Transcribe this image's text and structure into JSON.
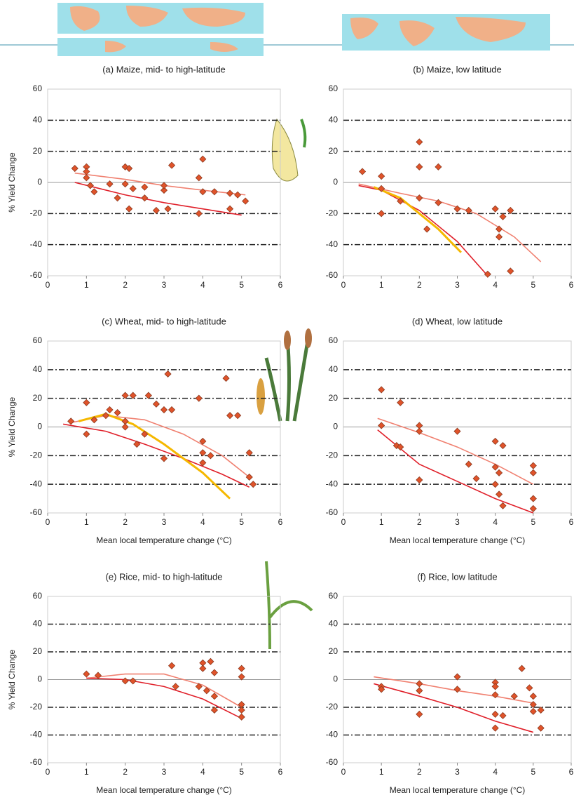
{
  "chart_data": [
    {
      "type": "scatter",
      "title": "(a) Maize, mid- to high-latitude",
      "ylabel": "% Yield Change",
      "xlim": [
        0,
        6
      ],
      "ylim": [
        -60,
        60
      ],
      "xticks": [
        0,
        1,
        2,
        3,
        4,
        5,
        6
      ],
      "yticks": [
        -60,
        -40,
        -20,
        0,
        20,
        40,
        60
      ],
      "grid": true,
      "points": {
        "color": "#e0532a",
        "x": [
          0.7,
          1,
          1,
          1,
          1.1,
          1.2,
          1.6,
          1.8,
          2,
          2,
          2.1,
          2.1,
          2.2,
          2.5,
          2.5,
          2.8,
          3,
          3,
          3.1,
          3.2,
          3.9,
          3.9,
          4,
          4,
          4.3,
          4.7,
          4.7,
          4.9,
          5.1
        ],
        "values": [
          9,
          10,
          7,
          3,
          -2,
          -6,
          -1,
          -10,
          -1,
          10,
          9,
          -17,
          -4,
          -3,
          -10,
          -18,
          -5,
          -2,
          -17,
          11,
          -20,
          3,
          15,
          -6,
          -6,
          -7,
          -17,
          -8,
          -12
        ]
      },
      "curves": [
        {
          "color": "#f08070",
          "x": [
            0.7,
            2,
            3,
            4,
            5.1
          ],
          "values": [
            6,
            2,
            -2,
            -5,
            -8
          ]
        },
        {
          "color": "#e0202a",
          "x": [
            0.7,
            2,
            3,
            4,
            5
          ],
          "values": [
            0,
            -8,
            -13,
            -17,
            -21
          ]
        }
      ]
    },
    {
      "type": "scatter",
      "title": "(b) Maize, low latitude",
      "xlim": [
        0,
        6
      ],
      "ylim": [
        -60,
        60
      ],
      "xticks": [
        0,
        1,
        2,
        3,
        4,
        5,
        6
      ],
      "yticks": [
        -60,
        -40,
        -20,
        0,
        20,
        40,
        60
      ],
      "grid": true,
      "points": {
        "color": "#e0532a",
        "x": [
          0.5,
          1,
          1,
          1,
          1.5,
          2,
          2,
          2,
          2.2,
          2.5,
          2.5,
          3,
          3.3,
          4,
          4.1,
          4.1,
          4.2,
          4.4,
          4.4,
          3.8
        ],
        "values": [
          7,
          -20,
          4,
          -4,
          -12,
          26,
          10,
          -10,
          -30,
          10,
          -13,
          -17,
          -18,
          -17,
          -30,
          -35,
          -22,
          -18,
          -57,
          -59
        ]
      },
      "curves": [
        {
          "color": "#f08070",
          "x": [
            0.4,
            1.5,
            2.5,
            3.5,
            4.5,
            5.2
          ],
          "values": [
            -1,
            -7,
            -12,
            -20,
            -35,
            -51
          ]
        },
        {
          "color": "#e0202a",
          "x": [
            0.4,
            1,
            2,
            3,
            3.8
          ],
          "values": [
            -2,
            -5,
            -18,
            -38,
            -60
          ]
        },
        {
          "color": "#f5b800",
          "x": [
            0.8,
            1.5,
            2.5,
            3.1
          ],
          "values": [
            -3,
            -10,
            -30,
            -45
          ]
        }
      ]
    },
    {
      "type": "scatter",
      "title": "(c) Wheat, mid- to high-latitude",
      "ylabel": "% Yield Change",
      "xlabel": "Mean local temperature change (°C)",
      "xlim": [
        0,
        6
      ],
      "ylim": [
        -60,
        60
      ],
      "xticks": [
        0,
        1,
        2,
        3,
        4,
        5,
        6
      ],
      "yticks": [
        -60,
        -40,
        -20,
        0,
        20,
        40,
        60
      ],
      "grid": true,
      "points": {
        "color": "#e0532a",
        "x": [
          0.6,
          1,
          1,
          1.2,
          1.5,
          1.6,
          1.8,
          2,
          2,
          2.2,
          2,
          2.3,
          2.5,
          2.6,
          2.8,
          3,
          3.1,
          3.2,
          3,
          3.9,
          4,
          4,
          4,
          4.2,
          4.6,
          4.7,
          4.9,
          5.2,
          5.2,
          5.3
        ],
        "values": [
          4,
          17,
          -5,
          5,
          8,
          12,
          10,
          22,
          4,
          22,
          0,
          -12,
          -5,
          22,
          16,
          12,
          37,
          12,
          -22,
          20,
          -10,
          -18,
          -25,
          -20,
          34,
          8,
          8,
          -18,
          -35,
          -40
        ]
      },
      "curves": [
        {
          "color": "#f08070",
          "x": [
            0.6,
            1.5,
            2.5,
            3.5,
            4.5,
            5.2
          ],
          "values": [
            3,
            8,
            5,
            -5,
            -20,
            -35
          ]
        },
        {
          "color": "#e0202a",
          "x": [
            0.4,
            1.5,
            2.5,
            3.5,
            4.5,
            5.2
          ],
          "values": [
            2,
            -3,
            -12,
            -22,
            -33,
            -42
          ]
        },
        {
          "color": "#f5b800",
          "x": [
            0.8,
            1.5,
            2.2,
            3,
            4,
            4.7
          ],
          "values": [
            4,
            9,
            2,
            -12,
            -32,
            -50
          ]
        }
      ]
    },
    {
      "type": "scatter",
      "title": "(d) Wheat, low latitude",
      "xlabel": "Mean local temperature change (°C)",
      "xlim": [
        0,
        6
      ],
      "ylim": [
        -60,
        60
      ],
      "xticks": [
        0,
        1,
        2,
        3,
        4,
        5,
        6
      ],
      "yticks": [
        -60,
        -40,
        -20,
        0,
        20,
        40,
        60
      ],
      "grid": true,
      "points": {
        "color": "#e0532a",
        "x": [
          1,
          1,
          1.5,
          1.4,
          1.5,
          2,
          2,
          2,
          3,
          3.3,
          3.5,
          4,
          4,
          4,
          4.1,
          4.1,
          4.2,
          4.2,
          5,
          5,
          5,
          5
        ],
        "values": [
          26,
          1,
          17,
          -13,
          -14,
          1,
          -3,
          -37,
          -3,
          -26,
          -36,
          -10,
          -28,
          -40,
          -32,
          -47,
          -13,
          -55,
          -27,
          -32,
          -50,
          -57
        ]
      },
      "curves": [
        {
          "color": "#f08070",
          "x": [
            0.9,
            2,
            3,
            4,
            5
          ],
          "values": [
            6,
            -4,
            -14,
            -26,
            -40
          ]
        },
        {
          "color": "#e0202a",
          "x": [
            0.9,
            2,
            3,
            4,
            5
          ],
          "values": [
            -2,
            -26,
            -38,
            -50,
            -60
          ]
        }
      ]
    },
    {
      "type": "scatter",
      "title": "(e) Rice, mid- to high-latitude",
      "ylabel": "% Yield Change",
      "xlabel": "Mean local temperature change (°C)",
      "xlim": [
        0,
        6
      ],
      "ylim": [
        -60,
        60
      ],
      "xticks": [
        0,
        1,
        2,
        3,
        4,
        5,
        6
      ],
      "yticks": [
        -60,
        -40,
        -20,
        0,
        20,
        40,
        60
      ],
      "grid": true,
      "points": {
        "color": "#e0532a",
        "x": [
          1,
          1.3,
          2,
          2.2,
          3.2,
          3.3,
          3.9,
          4,
          4,
          4.1,
          4.2,
          4.3,
          4.3,
          4.3,
          5,
          5,
          5,
          5,
          5
        ],
        "values": [
          4,
          3,
          -1,
          -1,
          10,
          -5,
          -5,
          12,
          8,
          -8,
          13,
          5,
          -22,
          -12,
          8,
          2,
          -18,
          -22,
          -27
        ]
      },
      "curves": [
        {
          "color": "#f08070",
          "x": [
            1,
            2,
            3,
            4,
            5
          ],
          "values": [
            1,
            4,
            4,
            -4,
            -20
          ]
        },
        {
          "color": "#e0202a",
          "x": [
            1,
            2,
            3,
            4,
            5
          ],
          "values": [
            1,
            0,
            -5,
            -14,
            -28
          ]
        }
      ]
    },
    {
      "type": "scatter",
      "title": "(f) Rice, low latitude",
      "xlabel": "Mean local temperature change (°C)",
      "xlim": [
        0,
        6
      ],
      "ylim": [
        -60,
        60
      ],
      "xticks": [
        0,
        1,
        2,
        3,
        4,
        5,
        6
      ],
      "yticks": [
        -60,
        -40,
        -20,
        0,
        20,
        40,
        60
      ],
      "grid": true,
      "points": {
        "color": "#e0532a",
        "x": [
          1,
          1,
          2,
          2,
          2,
          3,
          3,
          4,
          4,
          4,
          4,
          4,
          4.2,
          4.5,
          4.7,
          4.9,
          5,
          5,
          5,
          5.2,
          5.2
        ],
        "values": [
          -5,
          -7,
          -3,
          -8,
          -25,
          2,
          -7,
          -2,
          -5,
          -11,
          -25,
          -35,
          -26,
          -12,
          8,
          -6,
          -12,
          -18,
          -23,
          -35,
          -22
        ]
      },
      "curves": [
        {
          "color": "#f08070",
          "x": [
            0.8,
            2,
            3,
            4,
            5
          ],
          "values": [
            2,
            -3,
            -8,
            -12,
            -17
          ]
        },
        {
          "color": "#e0202a",
          "x": [
            0.8,
            2,
            3,
            4,
            5
          ],
          "values": [
            -3,
            -12,
            -20,
            -30,
            -38
          ]
        }
      ]
    }
  ]
}
